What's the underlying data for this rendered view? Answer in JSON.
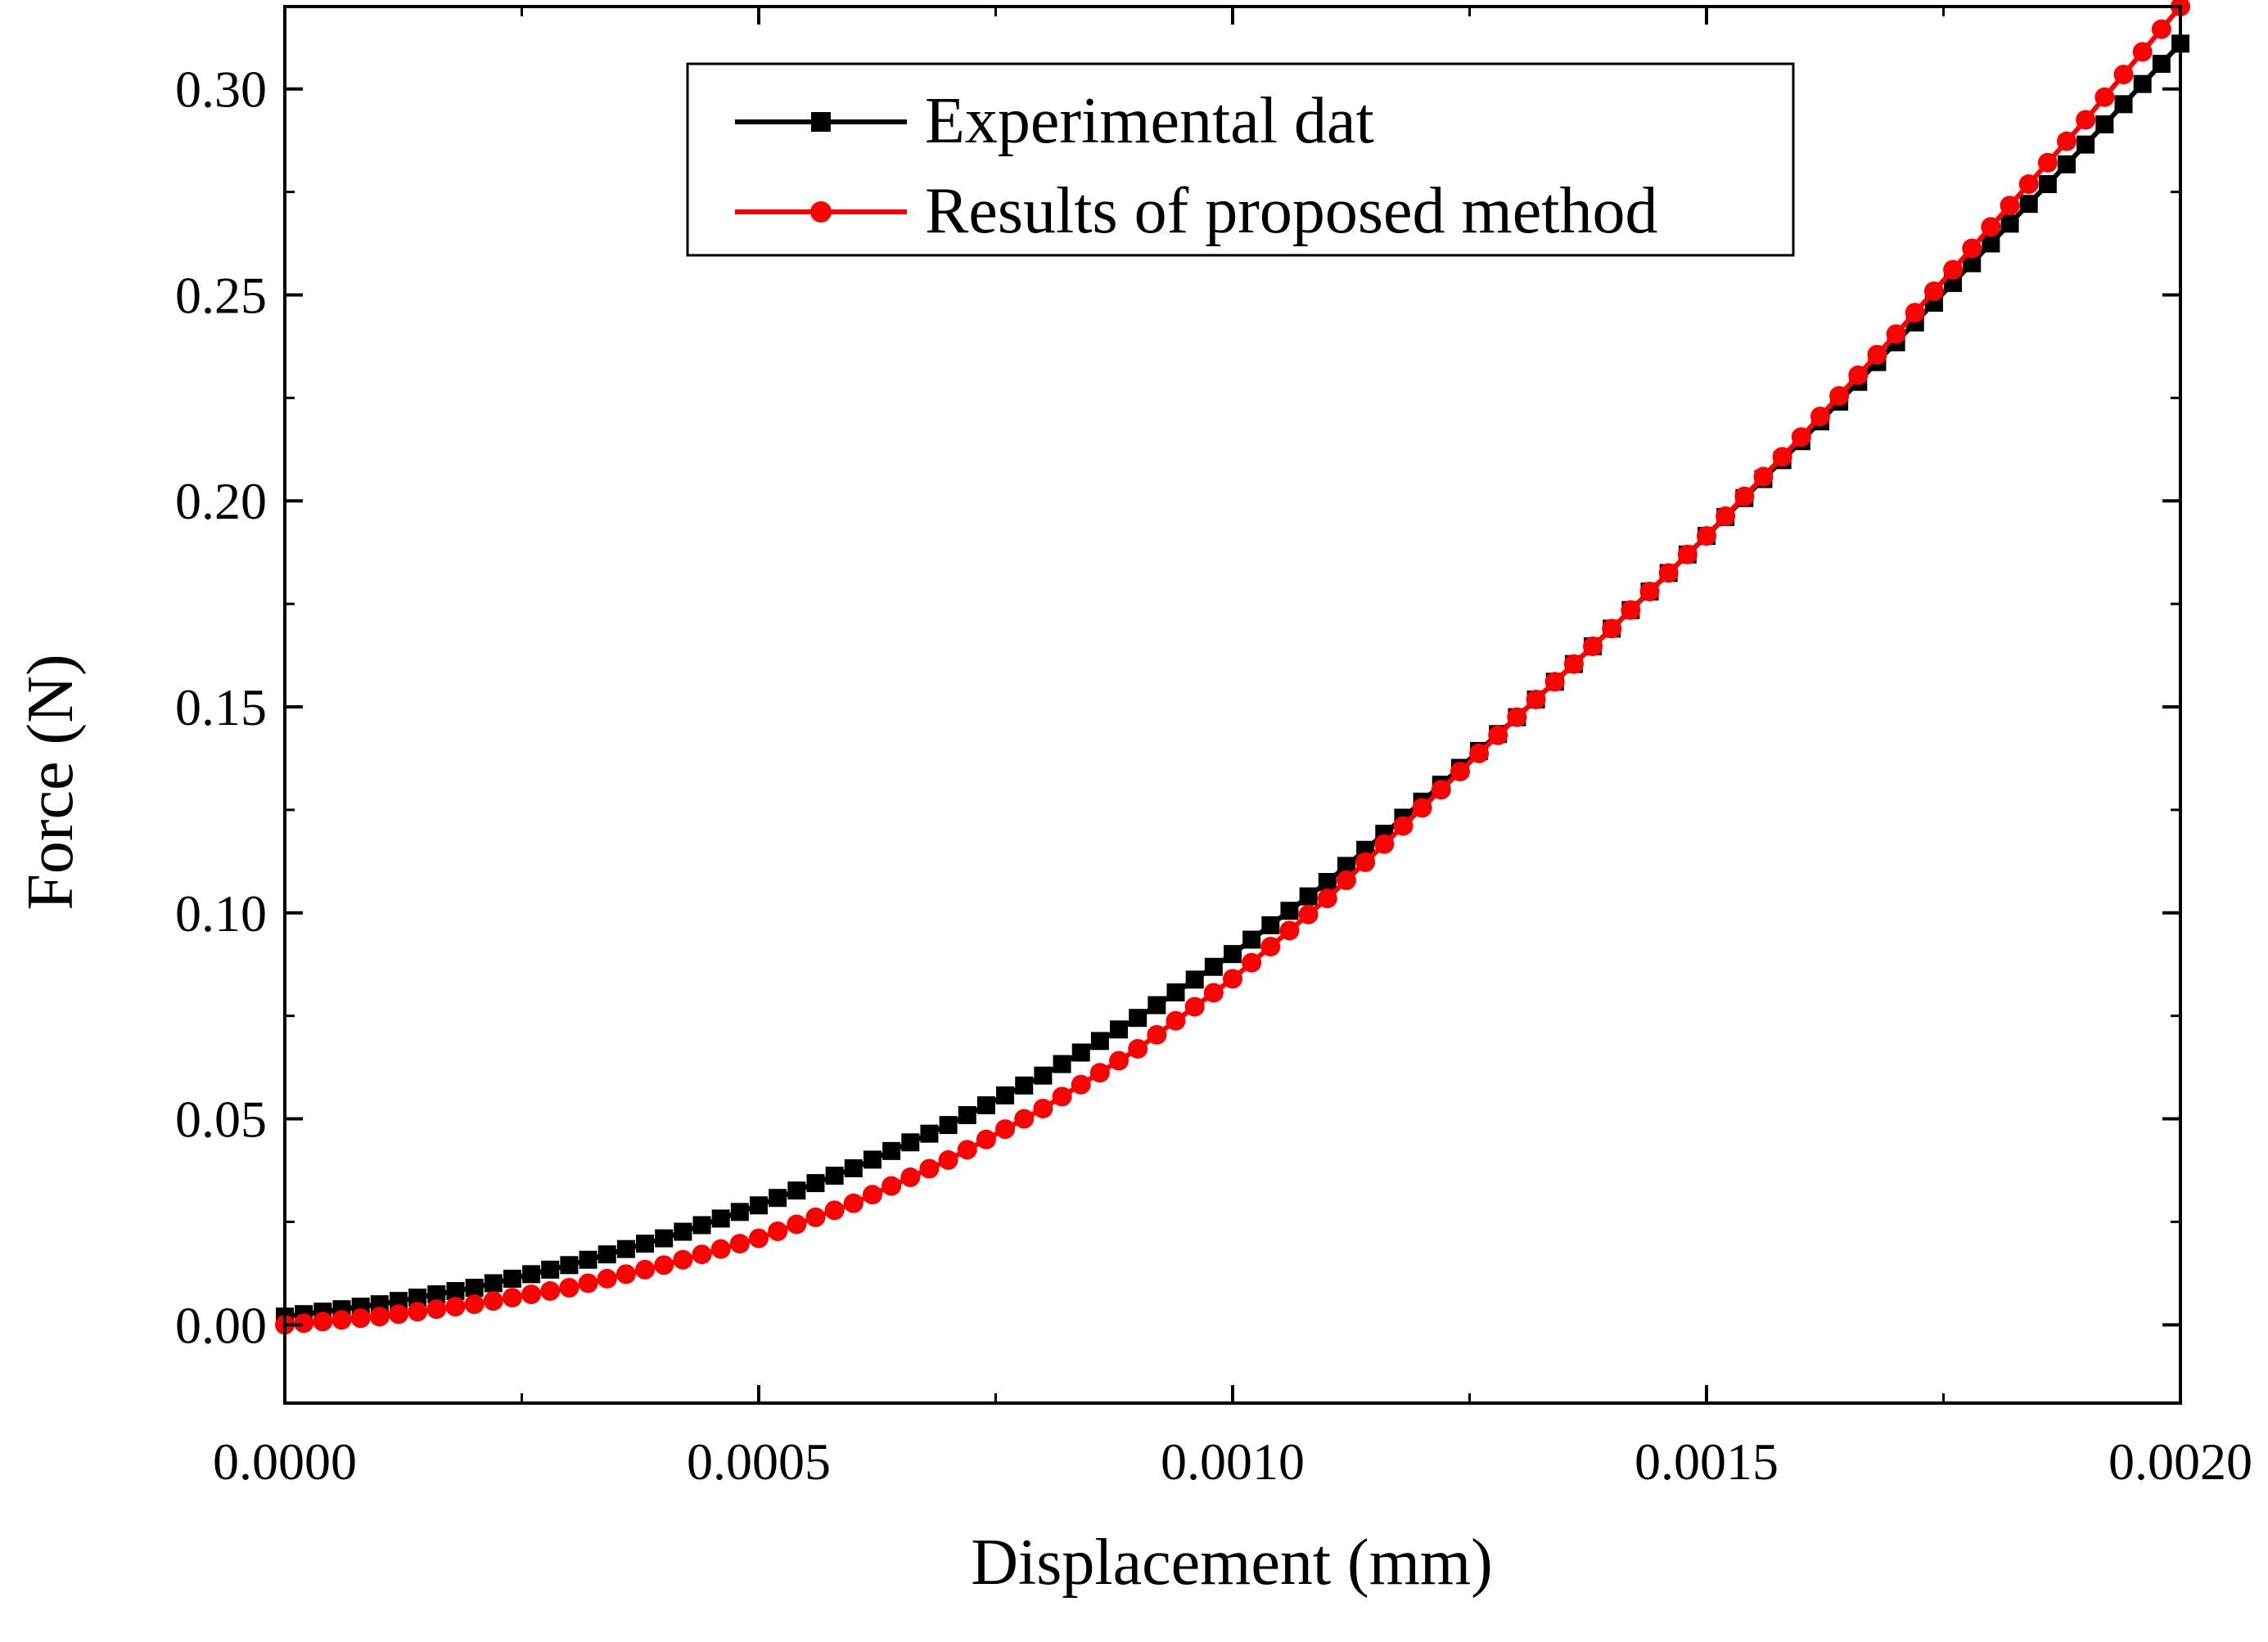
{
  "chart_data": {
    "type": "line",
    "title": "",
    "xlabel": "Displacement (mm)",
    "ylabel": "Force (N)",
    "xlim": [
      0.0,
      0.002
    ],
    "ylim": [
      -0.019,
      0.32
    ],
    "xticks": [
      {
        "value": 0.0,
        "label": "0.0000"
      },
      {
        "value": 0.0005,
        "label": "0.0005"
      },
      {
        "value": 0.001,
        "label": "0.0010"
      },
      {
        "value": 0.0015,
        "label": "0.0015"
      },
      {
        "value": 0.002,
        "label": "0.0020"
      }
    ],
    "yticks": [
      {
        "value": 0.0,
        "label": "0.00"
      },
      {
        "value": 0.05,
        "label": "0.05"
      },
      {
        "value": 0.1,
        "label": "0.10"
      },
      {
        "value": 0.15,
        "label": "0.15"
      },
      {
        "value": 0.2,
        "label": "0.20"
      },
      {
        "value": 0.25,
        "label": "0.25"
      },
      {
        "value": 0.3,
        "label": "0.30"
      }
    ],
    "grid": false,
    "legend_position": "top-center",
    "series": [
      {
        "name": "Experimental dat",
        "color": "#000000",
        "marker": "square",
        "x": [
          0.0,
          0.0001,
          0.0002,
          0.0003,
          0.0004,
          0.0005,
          0.0006,
          0.0007,
          0.0008,
          0.0009,
          0.001,
          0.0011,
          0.0012,
          0.0013,
          0.0014,
          0.0015,
          0.0016,
          0.0017,
          0.0018,
          0.0019,
          0.002
        ],
        "y": [
          0.002,
          0.005,
          0.009,
          0.0145,
          0.021,
          0.029,
          0.038,
          0.0485,
          0.0605,
          0.0745,
          0.09,
          0.1075,
          0.127,
          0.1475,
          0.169,
          0.1915,
          0.2145,
          0.2385,
          0.2625,
          0.2865,
          0.311
        ]
      },
      {
        "name": "Results of proposed method",
        "color": "#ff0000",
        "marker": "circle",
        "x": [
          0.0,
          0.0001,
          0.0002,
          0.0003,
          0.0004,
          0.0005,
          0.0006,
          0.0007,
          0.0008,
          0.0009,
          0.001,
          0.0011,
          0.0012,
          0.0013,
          0.0014,
          0.0015,
          0.0016,
          0.0017,
          0.0018,
          0.0019,
          0.002
        ],
        "y": [
          0.0,
          0.002,
          0.005,
          0.009,
          0.0145,
          0.021,
          0.0295,
          0.04,
          0.0525,
          0.067,
          0.084,
          0.1035,
          0.1255,
          0.1475,
          0.169,
          0.1915,
          0.2155,
          0.2405,
          0.2665,
          0.2925,
          0.32
        ]
      }
    ]
  }
}
